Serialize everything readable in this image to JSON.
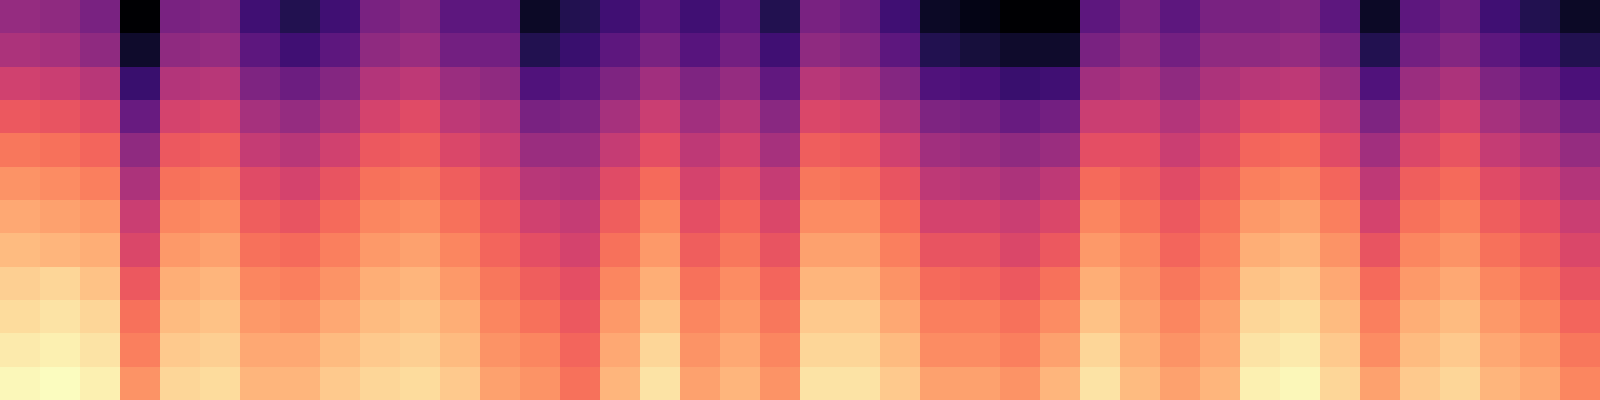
{
  "chart_data": {
    "type": "heatmap",
    "tick_labels": false,
    "cells": [
      [
        35,
        34,
        30,
        5,
        30,
        31,
        20,
        15,
        20,
        30,
        32,
        25,
        25,
        10,
        15,
        20,
        25,
        20,
        25,
        15,
        30,
        28,
        20,
        10,
        8,
        5,
        5,
        25,
        30,
        25,
        30,
        30,
        31,
        25,
        10,
        25,
        28,
        20,
        15,
        10
      ],
      [
        39,
        38,
        34,
        11,
        34,
        35,
        25,
        20,
        25,
        34,
        36,
        29,
        29,
        15,
        19,
        25,
        30,
        24,
        29,
        20,
        34,
        32,
        25,
        15,
        13,
        11,
        11,
        30,
        34,
        29,
        34,
        34,
        35,
        30,
        15,
        29,
        32,
        25,
        20,
        15
      ],
      [
        45,
        44,
        41,
        19,
        40,
        41,
        31,
        28,
        32,
        40,
        42,
        36,
        34,
        23,
        25,
        31,
        37,
        31,
        35,
        26,
        41,
        39,
        32,
        23,
        22,
        19,
        20,
        37,
        39,
        34,
        39,
        41,
        42,
        36,
        23,
        36,
        39,
        31,
        27,
        22
      ],
      [
        51,
        50,
        48,
        27,
        46,
        47,
        38,
        35,
        39,
        46,
        48,
        42,
        40,
        30,
        31,
        38,
        44,
        37,
        41,
        33,
        47,
        46,
        39,
        31,
        30,
        27,
        29,
        44,
        44,
        40,
        44,
        48,
        49,
        43,
        31,
        42,
        45,
        38,
        34,
        29
      ],
      [
        56,
        55,
        53,
        34,
        51,
        52,
        43,
        41,
        45,
        51,
        52,
        47,
        44,
        36,
        36,
        43,
        49,
        42,
        46,
        38,
        52,
        51,
        45,
        37,
        36,
        34,
        36,
        49,
        49,
        44,
        48,
        53,
        54,
        48,
        37,
        47,
        50,
        43,
        40,
        35
      ],
      [
        60,
        59,
        57,
        39,
        55,
        56,
        48,
        46,
        50,
        55,
        56,
        52,
        48,
        41,
        40,
        48,
        54,
        46,
        50,
        43,
        56,
        55,
        50,
        42,
        41,
        39,
        42,
        54,
        52,
        48,
        52,
        57,
        58,
        53,
        42,
        52,
        54,
        48,
        45,
        40
      ],
      [
        63,
        62,
        61,
        44,
        58,
        59,
        52,
        50,
        54,
        58,
        59,
        55,
        51,
        45,
        43,
        52,
        58,
        49,
        53,
        47,
        59,
        59,
        54,
        46,
        46,
        44,
        47,
        58,
        55,
        51,
        55,
        61,
        62,
        57,
        46,
        55,
        57,
        52,
        49,
        44
      ],
      [
        66,
        65,
        64,
        47,
        61,
        62,
        55,
        54,
        57,
        61,
        62,
        58,
        53,
        49,
        46,
        55,
        61,
        52,
        56,
        50,
        62,
        62,
        57,
        50,
        50,
        47,
        51,
        61,
        58,
        53,
        57,
        64,
        65,
        60,
        50,
        58,
        60,
        55,
        52,
        47
      ],
      [
        69,
        70,
        67,
        51,
        64,
        65,
        58,
        57,
        60,
        64,
        65,
        61,
        56,
        52,
        49,
        58,
        64,
        55,
        59,
        53,
        65,
        65,
        60,
        54,
        53,
        51,
        55,
        64,
        60,
        56,
        59,
        67,
        68,
        63,
        54,
        61,
        63,
        58,
        55,
        50
      ],
      [
        71,
        72,
        70,
        55,
        66,
        67,
        61,
        60,
        63,
        66,
        67,
        64,
        58,
        55,
        51,
        61,
        67,
        58,
        61,
        56,
        68,
        68,
        63,
        57,
        57,
        55,
        59,
        67,
        62,
        58,
        62,
        70,
        71,
        66,
        57,
        64,
        66,
        61,
        58,
        53
      ],
      [
        73,
        74,
        72,
        57,
        68,
        69,
        63,
        63,
        66,
        68,
        69,
        66,
        60,
        58,
        53,
        63,
        70,
        60,
        63,
        58,
        70,
        70,
        66,
        59,
        59,
        57,
        62,
        70,
        64,
        60,
        63,
        72,
        73,
        68,
        59,
        66,
        68,
        63,
        61,
        56
      ],
      [
        75,
        76,
        74,
        60,
        70,
        71,
        65,
        65,
        68,
        70,
        71,
        68,
        62,
        60,
        55,
        65,
        72,
        62,
        65,
        60,
        72,
        72,
        68,
        62,
        62,
        60,
        65,
        72,
        66,
        62,
        65,
        74,
        75,
        70,
        62,
        68,
        70,
        65,
        63,
        58
      ]
    ]
  }
}
